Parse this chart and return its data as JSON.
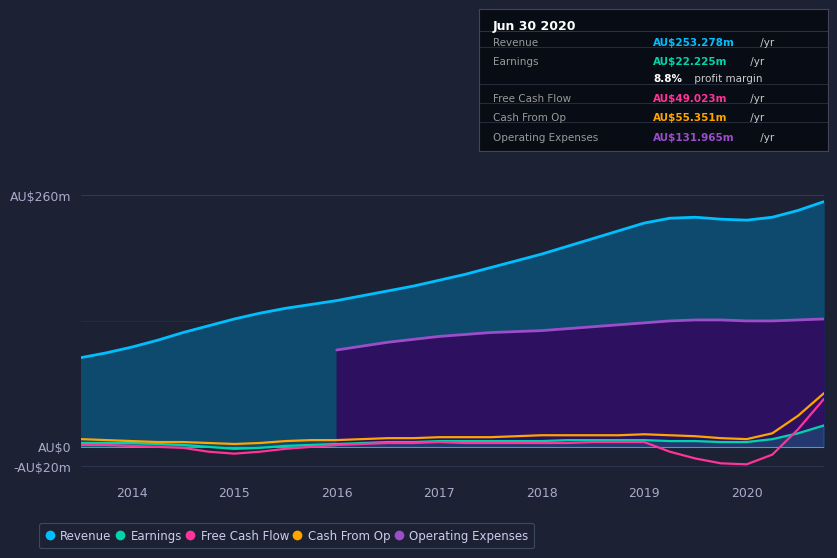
{
  "bg_color": "#1c2233",
  "plot_bg_color": "#1c2233",
  "x_years": [
    2013.5,
    2013.75,
    2014.0,
    2014.25,
    2014.5,
    2014.75,
    2015.0,
    2015.25,
    2015.5,
    2015.75,
    2016.0,
    2016.25,
    2016.5,
    2016.75,
    2017.0,
    2017.25,
    2017.5,
    2017.75,
    2018.0,
    2018.25,
    2018.5,
    2018.75,
    2019.0,
    2019.25,
    2019.5,
    2019.75,
    2020.0,
    2020.25,
    2020.5,
    2020.75
  ],
  "revenue": [
    92,
    97,
    103,
    110,
    118,
    125,
    132,
    138,
    143,
    147,
    151,
    156,
    161,
    166,
    172,
    178,
    185,
    192,
    199,
    207,
    215,
    223,
    231,
    236,
    237,
    235,
    234,
    237,
    244,
    253
  ],
  "opex": [
    0,
    0,
    0,
    0,
    0,
    0,
    0,
    0,
    0,
    0,
    100,
    104,
    108,
    111,
    114,
    116,
    118,
    119,
    120,
    122,
    124,
    126,
    128,
    130,
    131,
    131,
    130,
    130,
    131,
    132
  ],
  "earnings": [
    4,
    4,
    4,
    3,
    2,
    0,
    -2,
    -1,
    1,
    2,
    3,
    4,
    5,
    5,
    6,
    6,
    6,
    6,
    6,
    7,
    7,
    7,
    7,
    6,
    6,
    5,
    5,
    8,
    14,
    22
  ],
  "fcf": [
    2,
    2,
    1,
    0,
    -1,
    -5,
    -7,
    -5,
    -2,
    0,
    2,
    3,
    4,
    4,
    5,
    4,
    4,
    4,
    4,
    4,
    5,
    5,
    5,
    -5,
    -12,
    -17,
    -18,
    -8,
    18,
    49
  ],
  "cashop": [
    8,
    7,
    6,
    5,
    5,
    4,
    3,
    4,
    6,
    7,
    7,
    8,
    9,
    9,
    10,
    10,
    10,
    11,
    12,
    12,
    12,
    12,
    13,
    12,
    11,
    9,
    8,
    14,
    32,
    55
  ],
  "revenue_color": "#00bfff",
  "opex_color": "#9b4dca",
  "earnings_color": "#00d4aa",
  "fcf_color": "#ff3399",
  "cashop_color": "#ffa500",
  "revenue_fill": "#0d4a6e",
  "opex_fill": "#2d1060",
  "ylim": [
    -30,
    285
  ],
  "ytick_vals": [
    -20,
    0,
    260
  ],
  "ytick_labels": [
    "-AU$20m",
    "AU$0",
    "AU$260m"
  ],
  "xtick_vals": [
    2014,
    2015,
    2016,
    2017,
    2018,
    2019,
    2020
  ],
  "opex_start_x": 2016.0,
  "legend_items": [
    {
      "label": "Revenue",
      "color": "#00bfff"
    },
    {
      "label": "Earnings",
      "color": "#00d4aa"
    },
    {
      "label": "Free Cash Flow",
      "color": "#ff3399"
    },
    {
      "label": "Cash From Op",
      "color": "#ffa500"
    },
    {
      "label": "Operating Expenses",
      "color": "#9b4dca"
    }
  ],
  "info_box": {
    "date": "Jun 30 2020",
    "rows": [
      {
        "label": "Revenue",
        "value": "AU$253.278m",
        "unit": " /yr",
        "value_color": "#00bfff"
      },
      {
        "label": "Earnings",
        "value": "AU$22.225m",
        "unit": " /yr",
        "value_color": "#00d4aa"
      },
      {
        "label": "",
        "value": "8.8%",
        "unit": " profit margin",
        "value_color": "#ffffff"
      },
      {
        "label": "Free Cash Flow",
        "value": "AU$49.023m",
        "unit": " /yr",
        "value_color": "#ff3399"
      },
      {
        "label": "Cash From Op",
        "value": "AU$55.351m",
        "unit": " /yr",
        "value_color": "#ffa500"
      },
      {
        "label": "Operating Expenses",
        "value": "AU$131.965m",
        "unit": " /yr",
        "value_color": "#9b4dca"
      }
    ]
  }
}
